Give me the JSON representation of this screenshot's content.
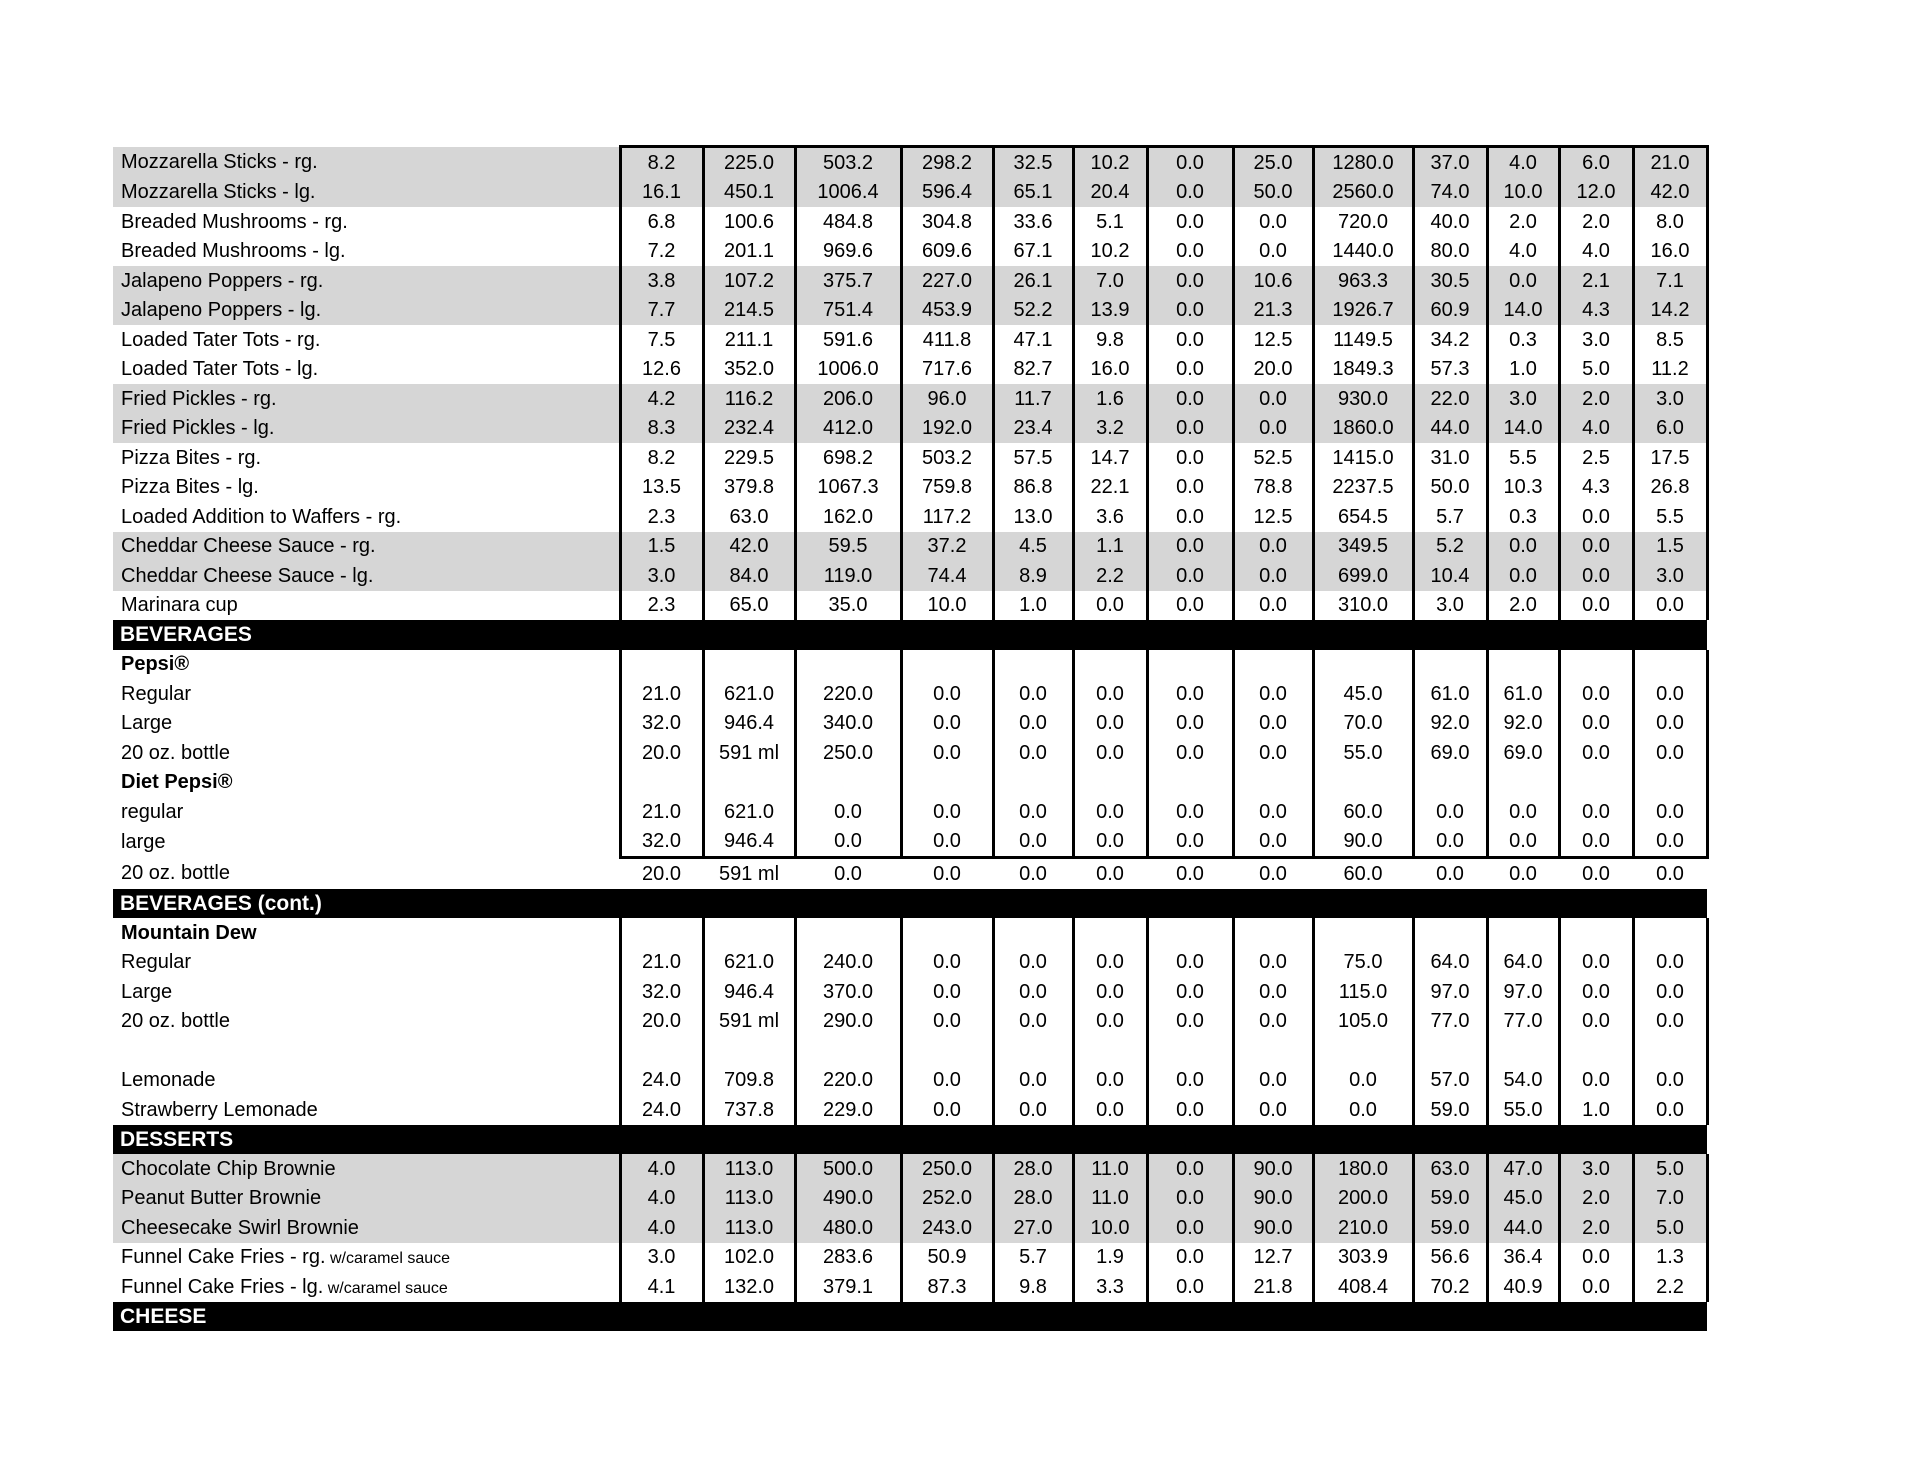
{
  "document": {
    "kind": "scanned-nutrition-information-page",
    "colors": {
      "shaded_row": "#d6d6d6",
      "section_bar_bg": "#000000",
      "section_bar_text": "#ffffff",
      "grid_line": "#000000"
    }
  },
  "table": {
    "numeric_column_count": 13,
    "rows": [
      {
        "kind": "item",
        "label": "Mozzarella Sticks - rg.",
        "shaded": true,
        "top_line": true,
        "values": [
          "8.2",
          "225.0",
          "503.2",
          "298.2",
          "32.5",
          "10.2",
          "0.0",
          "25.0",
          "1280.0",
          "37.0",
          "4.0",
          "6.0",
          "21.0"
        ]
      },
      {
        "kind": "item",
        "label": "Mozzarella Sticks - lg.",
        "shaded": true,
        "values": [
          "16.1",
          "450.1",
          "1006.4",
          "596.4",
          "65.1",
          "20.4",
          "0.0",
          "50.0",
          "2560.0",
          "74.0",
          "10.0",
          "12.0",
          "42.0"
        ]
      },
      {
        "kind": "item",
        "label": "Breaded Mushrooms - rg.",
        "values": [
          "6.8",
          "100.6",
          "484.8",
          "304.8",
          "33.6",
          "5.1",
          "0.0",
          "0.0",
          "720.0",
          "40.0",
          "2.0",
          "2.0",
          "8.0"
        ]
      },
      {
        "kind": "item",
        "label": "Breaded Mushrooms - lg.",
        "values": [
          "7.2",
          "201.1",
          "969.6",
          "609.6",
          "67.1",
          "10.2",
          "0.0",
          "0.0",
          "1440.0",
          "80.0",
          "4.0",
          "4.0",
          "16.0"
        ]
      },
      {
        "kind": "item",
        "label": "Jalapeno Poppers - rg.",
        "shaded": true,
        "values": [
          "3.8",
          "107.2",
          "375.7",
          "227.0",
          "26.1",
          "7.0",
          "0.0",
          "10.6",
          "963.3",
          "30.5",
          "0.0",
          "2.1",
          "7.1"
        ]
      },
      {
        "kind": "item",
        "label": "Jalapeno Poppers - lg.",
        "shaded": true,
        "values": [
          "7.7",
          "214.5",
          "751.4",
          "453.9",
          "52.2",
          "13.9",
          "0.0",
          "21.3",
          "1926.7",
          "60.9",
          "14.0",
          "4.3",
          "14.2"
        ]
      },
      {
        "kind": "item",
        "label": "Loaded Tater Tots - rg.",
        "values": [
          "7.5",
          "211.1",
          "591.6",
          "411.8",
          "47.1",
          "9.8",
          "0.0",
          "12.5",
          "1149.5",
          "34.2",
          "0.3",
          "3.0",
          "8.5"
        ]
      },
      {
        "kind": "item",
        "label": "Loaded Tater Tots - lg.",
        "values": [
          "12.6",
          "352.0",
          "1006.0",
          "717.6",
          "82.7",
          "16.0",
          "0.0",
          "20.0",
          "1849.3",
          "57.3",
          "1.0",
          "5.0",
          "11.2"
        ]
      },
      {
        "kind": "item",
        "label": "Fried Pickles - rg.",
        "shaded": true,
        "values": [
          "4.2",
          "116.2",
          "206.0",
          "96.0",
          "11.7",
          "1.6",
          "0.0",
          "0.0",
          "930.0",
          "22.0",
          "3.0",
          "2.0",
          "3.0"
        ]
      },
      {
        "kind": "item",
        "label": "Fried Pickles - lg.",
        "shaded": true,
        "values": [
          "8.3",
          "232.4",
          "412.0",
          "192.0",
          "23.4",
          "3.2",
          "0.0",
          "0.0",
          "1860.0",
          "44.0",
          "14.0",
          "4.0",
          "6.0"
        ]
      },
      {
        "kind": "item",
        "label": "Pizza Bites - rg.",
        "values": [
          "8.2",
          "229.5",
          "698.2",
          "503.2",
          "57.5",
          "14.7",
          "0.0",
          "52.5",
          "1415.0",
          "31.0",
          "5.5",
          "2.5",
          "17.5"
        ]
      },
      {
        "kind": "item",
        "label": "Pizza Bites - lg.",
        "values": [
          "13.5",
          "379.8",
          "1067.3",
          "759.8",
          "86.8",
          "22.1",
          "0.0",
          "78.8",
          "2237.5",
          "50.0",
          "10.3",
          "4.3",
          "26.8"
        ]
      },
      {
        "kind": "item",
        "label": "Loaded Addition to Waffers - rg.",
        "values": [
          "2.3",
          "63.0",
          "162.0",
          "117.2",
          "13.0",
          "3.6",
          "0.0",
          "12.5",
          "654.5",
          "5.7",
          "0.3",
          "0.0",
          "5.5"
        ]
      },
      {
        "kind": "item",
        "label": "Cheddar Cheese Sauce - rg.",
        "shaded": true,
        "values": [
          "1.5",
          "42.0",
          "59.5",
          "37.2",
          "4.5",
          "1.1",
          "0.0",
          "0.0",
          "349.5",
          "5.2",
          "0.0",
          "0.0",
          "1.5"
        ]
      },
      {
        "kind": "item",
        "label": "Cheddar Cheese Sauce - lg.",
        "shaded": true,
        "values": [
          "3.0",
          "84.0",
          "119.0",
          "74.4",
          "8.9",
          "2.2",
          "0.0",
          "0.0",
          "699.0",
          "10.4",
          "0.0",
          "0.0",
          "3.0"
        ]
      },
      {
        "kind": "item",
        "label": "Marinara cup",
        "values": [
          "2.3",
          "65.0",
          "35.0",
          "10.0",
          "1.0",
          "0.0",
          "0.0",
          "0.0",
          "310.0",
          "3.0",
          "2.0",
          "0.0",
          "0.0"
        ]
      },
      {
        "kind": "section",
        "label": "BEVERAGES"
      },
      {
        "kind": "subheader",
        "label": "Pepsi®",
        "values": [
          "",
          "",
          "",
          "",
          "",
          "",
          "",
          "",
          "",
          "",
          "",
          "",
          ""
        ]
      },
      {
        "kind": "item",
        "label": "Regular",
        "values": [
          "21.0",
          "621.0",
          "220.0",
          "0.0",
          "0.0",
          "0.0",
          "0.0",
          "0.0",
          "45.0",
          "61.0",
          "61.0",
          "0.0",
          "0.0"
        ]
      },
      {
        "kind": "item",
        "label": "Large",
        "values": [
          "32.0",
          "946.4",
          "340.0",
          "0.0",
          "0.0",
          "0.0",
          "0.0",
          "0.0",
          "70.0",
          "92.0",
          "92.0",
          "0.0",
          "0.0"
        ]
      },
      {
        "kind": "item",
        "label": "20 oz. bottle",
        "values": [
          "20.0",
          "591 ml",
          "250.0",
          "0.0",
          "0.0",
          "0.0",
          "0.0",
          "0.0",
          "55.0",
          "69.0",
          "69.0",
          "0.0",
          "0.0"
        ]
      },
      {
        "kind": "subheader",
        "label": "Diet Pepsi®",
        "values": [
          "",
          "",
          "",
          "",
          "",
          "",
          "",
          "",
          "",
          "",
          "",
          "",
          ""
        ]
      },
      {
        "kind": "item",
        "label": "regular",
        "values": [
          "21.0",
          "621.0",
          "0.0",
          "0.0",
          "0.0",
          "0.0",
          "0.0",
          "0.0",
          "60.0",
          "0.0",
          "0.0",
          "0.0",
          "0.0"
        ]
      },
      {
        "kind": "item",
        "label": "large",
        "bottom_line": true,
        "values": [
          "32.0",
          "946.4",
          "0.0",
          "0.0",
          "0.0",
          "0.0",
          "0.0",
          "0.0",
          "90.0",
          "0.0",
          "0.0",
          "0.0",
          "0.0"
        ]
      },
      {
        "kind": "item",
        "label": "20 oz. bottle",
        "no_borders": true,
        "values": [
          "20.0",
          "591 ml",
          "0.0",
          "0.0",
          "0.0",
          "0.0",
          "0.0",
          "0.0",
          "60.0",
          "0.0",
          "0.0",
          "0.0",
          "0.0"
        ]
      },
      {
        "kind": "section",
        "label": "BEVERAGES (cont.)"
      },
      {
        "kind": "subheader",
        "label": "Mountain Dew",
        "values": [
          "",
          "",
          "",
          "",
          "",
          "",
          "",
          "",
          "",
          "",
          "",
          "",
          ""
        ]
      },
      {
        "kind": "item",
        "label": "Regular",
        "values": [
          "21.0",
          "621.0",
          "240.0",
          "0.0",
          "0.0",
          "0.0",
          "0.0",
          "0.0",
          "75.0",
          "64.0",
          "64.0",
          "0.0",
          "0.0"
        ]
      },
      {
        "kind": "item",
        "label": "Large",
        "values": [
          "32.0",
          "946.4",
          "370.0",
          "0.0",
          "0.0",
          "0.0",
          "0.0",
          "0.0",
          "115.0",
          "97.0",
          "97.0",
          "0.0",
          "0.0"
        ]
      },
      {
        "kind": "item",
        "label": "20 oz. bottle",
        "values": [
          "20.0",
          "591 ml",
          "290.0",
          "0.0",
          "0.0",
          "0.0",
          "0.0",
          "0.0",
          "105.0",
          "77.0",
          "77.0",
          "0.0",
          "0.0"
        ]
      },
      {
        "kind": "blank",
        "label": "",
        "values": [
          "",
          "",
          "",
          "",
          "",
          "",
          "",
          "",
          "",
          "",
          "",
          "",
          ""
        ]
      },
      {
        "kind": "item",
        "label": "Lemonade",
        "values": [
          "24.0",
          "709.8",
          "220.0",
          "0.0",
          "0.0",
          "0.0",
          "0.0",
          "0.0",
          "0.0",
          "57.0",
          "54.0",
          "0.0",
          "0.0"
        ]
      },
      {
        "kind": "item",
        "label": "Strawberry Lemonade",
        "values": [
          "24.0",
          "737.8",
          "229.0",
          "0.0",
          "0.0",
          "0.0",
          "0.0",
          "0.0",
          "0.0",
          "59.0",
          "55.0",
          "1.0",
          "0.0"
        ]
      },
      {
        "kind": "section",
        "label": "DESSERTS"
      },
      {
        "kind": "item",
        "label": "Chocolate Chip Brownie",
        "shaded": true,
        "values": [
          "4.0",
          "113.0",
          "500.0",
          "250.0",
          "28.0",
          "11.0",
          "0.0",
          "90.0",
          "180.0",
          "63.0",
          "47.0",
          "3.0",
          "5.0"
        ]
      },
      {
        "kind": "item",
        "label": "Peanut Butter Brownie",
        "shaded": true,
        "values": [
          "4.0",
          "113.0",
          "490.0",
          "252.0",
          "28.0",
          "11.0",
          "0.0",
          "90.0",
          "200.0",
          "59.0",
          "45.0",
          "2.0",
          "7.0"
        ]
      },
      {
        "kind": "item",
        "label": "Cheesecake Swirl Brownie",
        "shaded": true,
        "values": [
          "4.0",
          "113.0",
          "480.0",
          "243.0",
          "27.0",
          "10.0",
          "0.0",
          "90.0",
          "210.0",
          "59.0",
          "44.0",
          "2.0",
          "5.0"
        ]
      },
      {
        "kind": "item",
        "label": "Funnel Cake Fries - rg.",
        "label_small": " w/caramel sauce",
        "values": [
          "3.0",
          "102.0",
          "283.6",
          "50.9",
          "5.7",
          "1.9",
          "0.0",
          "12.7",
          "303.9",
          "56.6",
          "36.4",
          "0.0",
          "1.3"
        ]
      },
      {
        "kind": "item",
        "label": "Funnel Cake Fries - lg.",
        "label_small": " w/caramel sauce",
        "values": [
          "4.1",
          "132.0",
          "379.1",
          "87.3",
          "9.8",
          "3.3",
          "0.0",
          "21.8",
          "408.4",
          "70.2",
          "40.9",
          "0.0",
          "2.2"
        ]
      },
      {
        "kind": "section",
        "label": "CHEESE"
      }
    ]
  }
}
